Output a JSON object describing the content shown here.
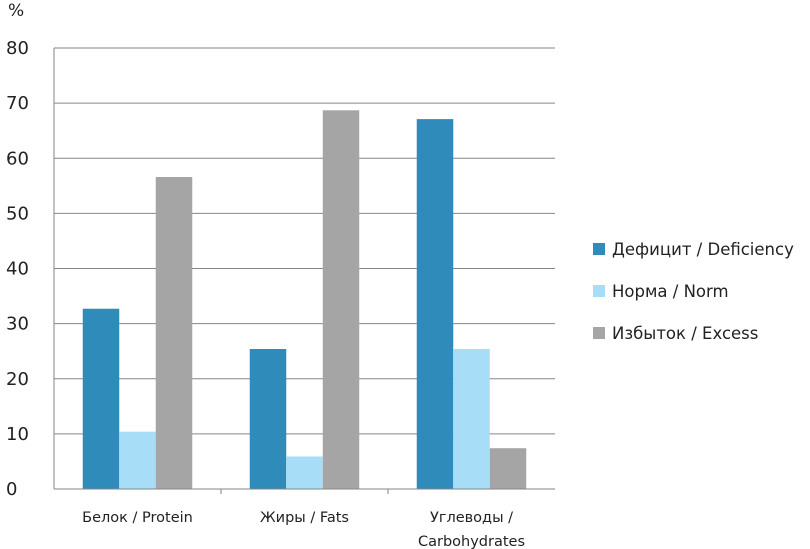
{
  "chart_data": {
    "type": "bar",
    "unit_label": "%",
    "categories": [
      [
        "Белок / Protein"
      ],
      [
        "Жиры / Fats"
      ],
      [
        "Углеводы /",
        "Carbohydrates"
      ]
    ],
    "series": [
      {
        "name": "Дефицит / Deficiency",
        "color": "#2E8BBA",
        "values": [
          32.7,
          25.4,
          67.1
        ]
      },
      {
        "name": "Норма / Norm",
        "color": "#A8DDF7",
        "values": [
          10.4,
          5.9,
          25.4
        ]
      },
      {
        "name": "Избыток / Excess",
        "color": "#A5A5A5",
        "values": [
          56.6,
          68.7,
          7.4
        ]
      }
    ],
    "ylim": [
      0,
      80
    ],
    "yticks": [
      0,
      10,
      20,
      30,
      40,
      50,
      60,
      70,
      80
    ],
    "grid": true,
    "legend_position": "right"
  }
}
